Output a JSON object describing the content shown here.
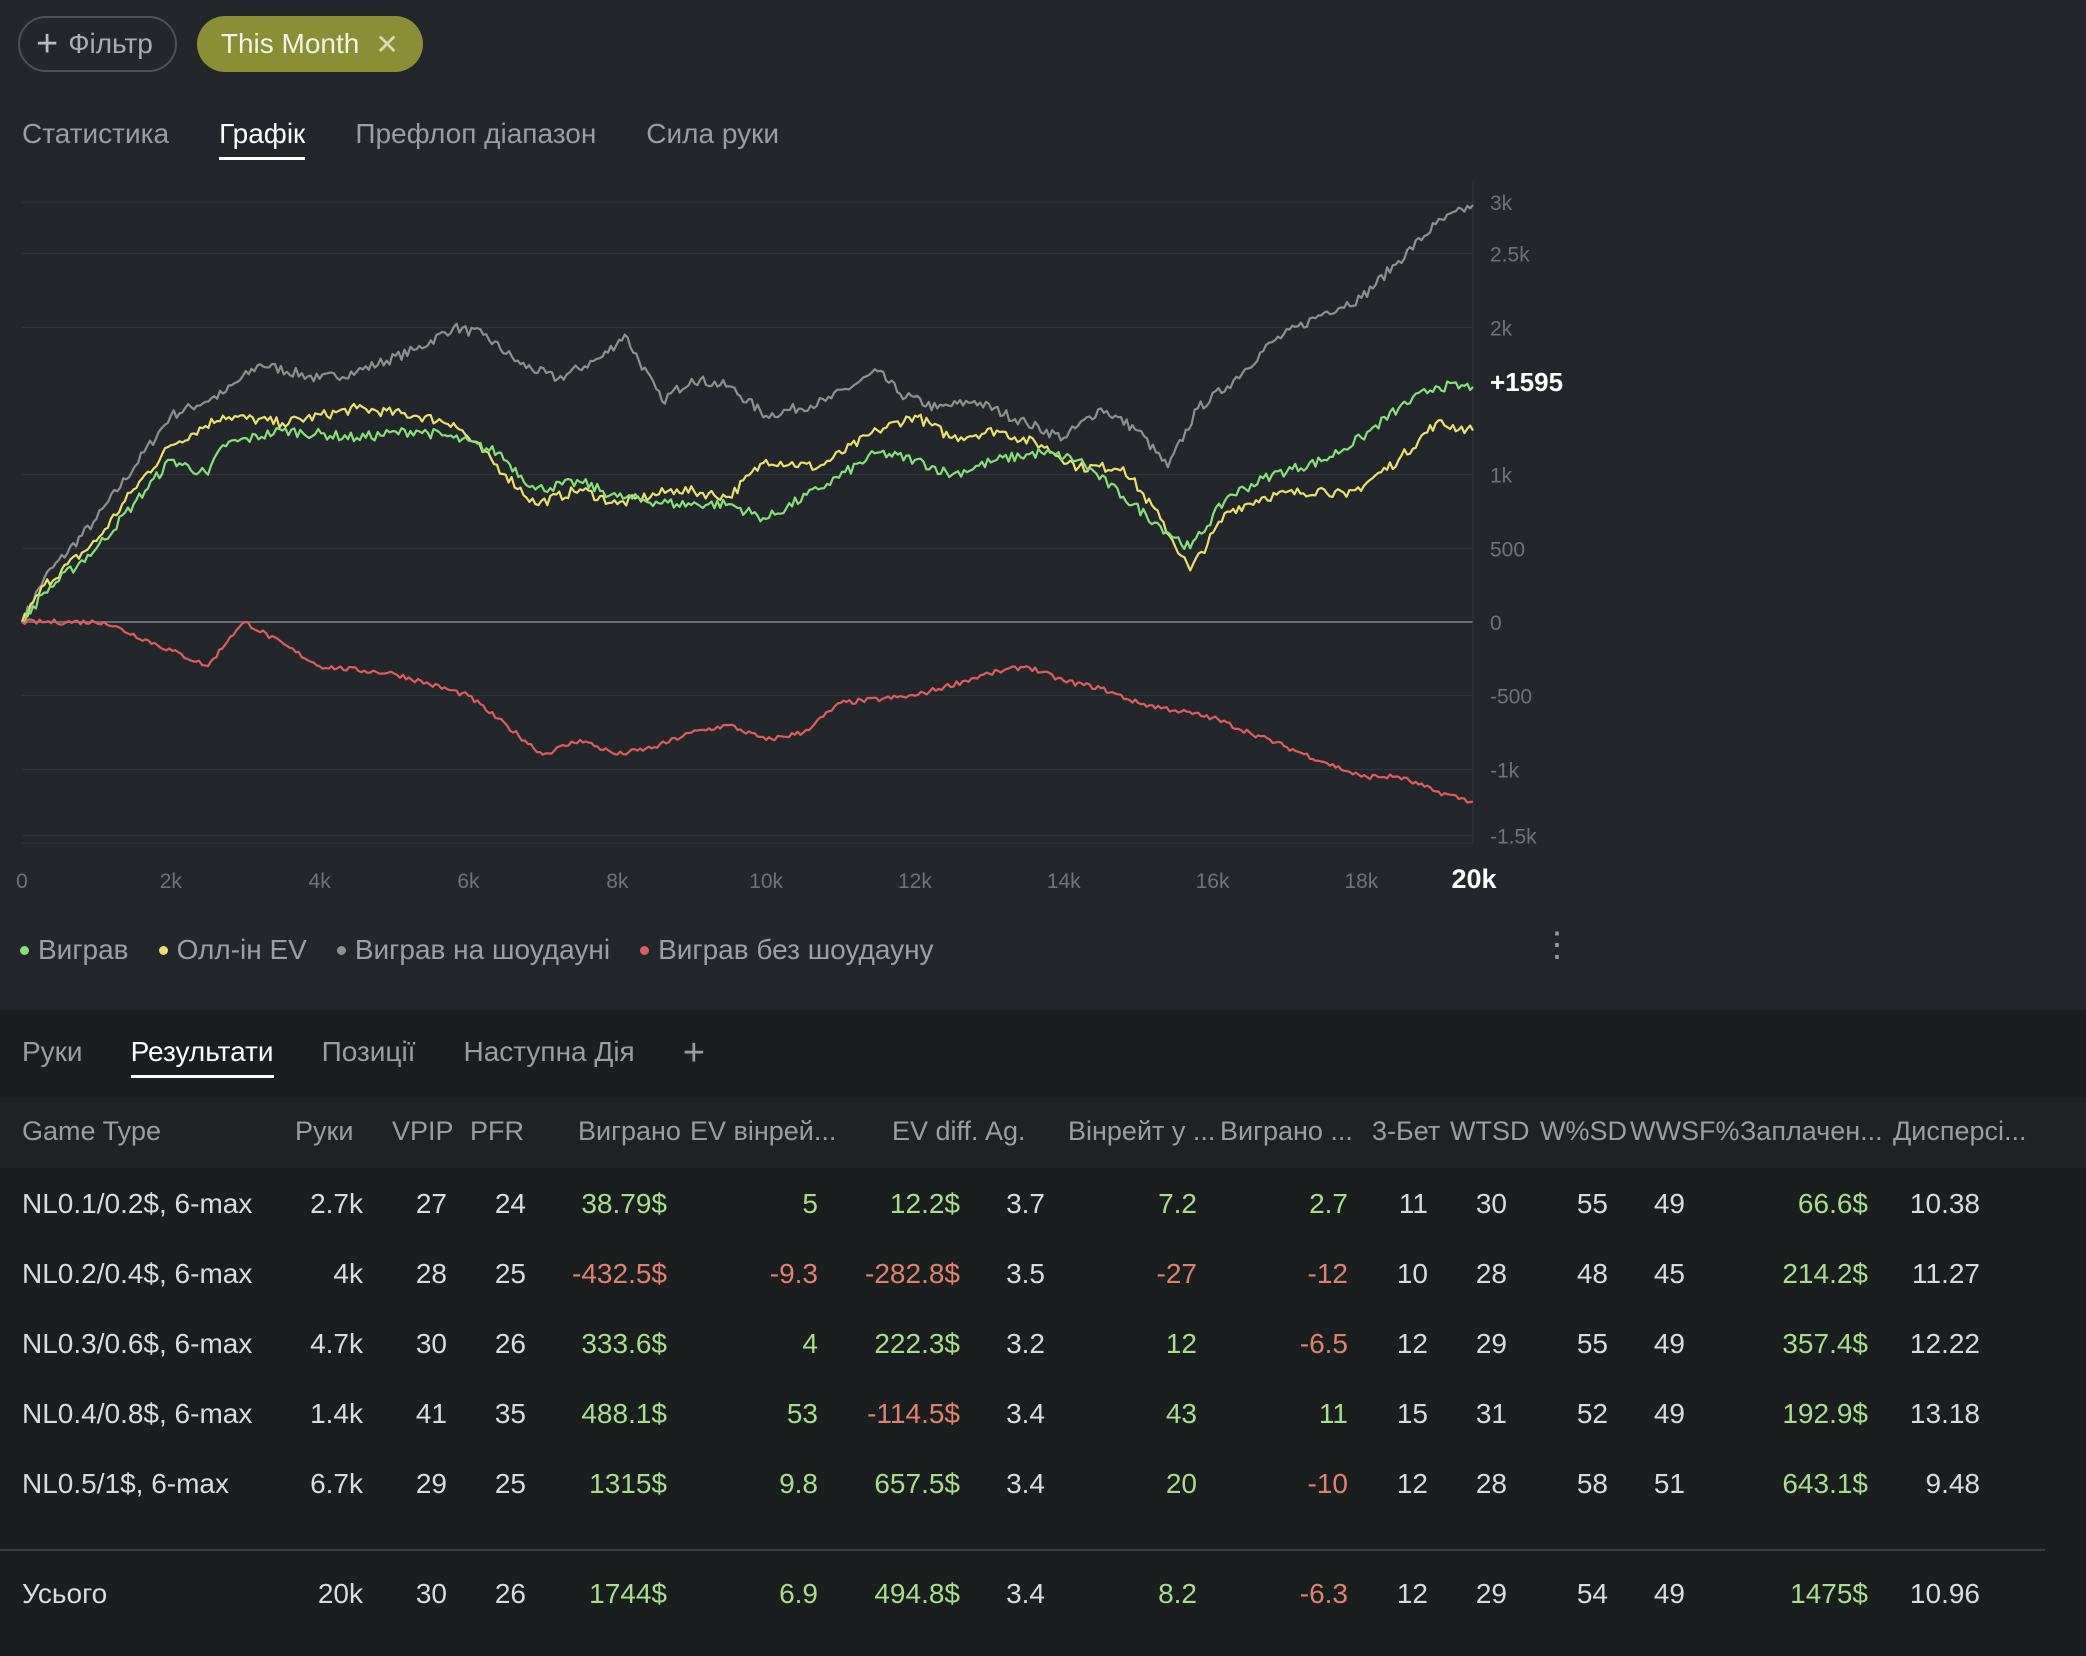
{
  "filters": {
    "add_label": "Фільтр",
    "active_label": "This Month"
  },
  "top_tabs": [
    "Статистика",
    "Графік",
    "Префлоп діапазон",
    "Сила руки"
  ],
  "top_tabs_selected": 1,
  "chart_data": {
    "type": "line",
    "x_ticks": [
      "0",
      "2k",
      "4k",
      "6k",
      "8k",
      "10k",
      "12k",
      "14k",
      "16k",
      "18k",
      "20k"
    ],
    "y_ticks": [
      "3k",
      "2.5k",
      "2k",
      "1k",
      "500",
      "0",
      "-500",
      "-1k",
      "-1.5k"
    ],
    "y_tick_values": [
      2850,
      2500,
      2000,
      1000,
      500,
      0,
      -500,
      -1000,
      -1450
    ],
    "xlim": [
      0,
      19500
    ],
    "ylim": [
      -1500,
      3000
    ],
    "end_label": "+1595",
    "series": [
      {
        "name": "Виграв на шоудауні",
        "color": "#8f8f8f",
        "x": [
          0,
          300,
          1000,
          2000,
          2700,
          3200,
          4000,
          4500,
          5300,
          5800,
          6200,
          6700,
          7200,
          7800,
          8100,
          8600,
          9000,
          9500,
          10000,
          10800,
          11500,
          11800,
          12300,
          12800,
          13500,
          14000,
          14500,
          15000,
          15400,
          15800,
          16200,
          16800,
          17500,
          18000,
          18500,
          19000,
          19500
        ],
        "y": [
          0,
          300,
          700,
          1400,
          1550,
          1750,
          1650,
          1700,
          1850,
          2000,
          1950,
          1750,
          1650,
          1800,
          1950,
          1500,
          1650,
          1600,
          1400,
          1500,
          1700,
          1550,
          1450,
          1500,
          1350,
          1250,
          1450,
          1300,
          1050,
          1450,
          1600,
          1900,
          2100,
          2200,
          2450,
          2700,
          2830
        ]
      },
      {
        "name": "Оллін EV",
        "color": "#e8e070",
        "x": [
          0,
          300,
          1000,
          1500,
          2000,
          2700,
          3500,
          4500,
          5300,
          5800,
          6500,
          6900,
          7500,
          8000,
          8800,
          9500,
          10000,
          10700,
          11500,
          12000,
          12500,
          13100,
          13700,
          14200,
          14800,
          15300,
          15700,
          16200,
          16700,
          17500,
          17800,
          18500,
          19000,
          19500
        ],
        "y": [
          0,
          250,
          550,
          900,
          1200,
          1400,
          1350,
          1450,
          1400,
          1350,
          1000,
          800,
          900,
          800,
          900,
          850,
          1100,
          1050,
          1300,
          1400,
          1250,
          1300,
          1200,
          1050,
          1050,
          700,
          350,
          750,
          850,
          900,
          850,
          1100,
          1350,
          1300
        ]
      },
      {
        "name": "Виграв",
        "color": "#86e07a",
        "x": [
          0,
          300,
          1000,
          1500,
          2000,
          2500,
          2700,
          3500,
          4500,
          5300,
          5800,
          6400,
          6900,
          7500,
          8000,
          8800,
          9500,
          10000,
          10700,
          11500,
          12000,
          12500,
          13100,
          13700,
          14200,
          14800,
          15300,
          15700,
          16200,
          16800,
          17500,
          18000,
          18500,
          19000,
          19500
        ],
        "y": [
          0,
          200,
          500,
          800,
          1100,
          1000,
          1200,
          1300,
          1250,
          1300,
          1250,
          1150,
          900,
          950,
          850,
          800,
          800,
          700,
          900,
          1150,
          1100,
          1000,
          1100,
          1150,
          1100,
          850,
          650,
          500,
          850,
          1000,
          1100,
          1250,
          1450,
          1600,
          1595
        ]
      },
      {
        "name": "Виграв без шоудауну",
        "color": "#e05c5c",
        "x": [
          0,
          1100,
          2500,
          2800,
          3000,
          4000,
          5000,
          6000,
          7000,
          7500,
          8000,
          8500,
          9000,
          9500,
          10000,
          10500,
          11000,
          12000,
          13000,
          13500,
          14000,
          14500,
          15000,
          15500,
          16000,
          16500,
          17000,
          17500,
          18000,
          18500,
          19000,
          19500
        ],
        "y": [
          0,
          0,
          -300,
          -100,
          0,
          -300,
          -350,
          -500,
          -900,
          -800,
          -900,
          -850,
          -750,
          -700,
          -800,
          -750,
          -550,
          -500,
          -350,
          -300,
          -400,
          -450,
          -550,
          -600,
          -650,
          -750,
          -850,
          -950,
          -1050,
          -1050,
          -1150,
          -1220
        ]
      }
    ]
  },
  "legend": [
    {
      "label": "Виграв",
      "color": "#86e07a"
    },
    {
      "label": "Олл-ін EV",
      "color": "#e8e070"
    },
    {
      "label": "Виграв на шоудауні",
      "color": "#8f8f8f"
    },
    {
      "label": "Виграв без шоудауну",
      "color": "#e05c5c"
    }
  ],
  "bottom_tabs": [
    "Руки",
    "Результати",
    "Позиції",
    "Наступна Дія"
  ],
  "bottom_tabs_selected": 1,
  "table": {
    "columns": [
      "Game Type",
      "Руки",
      "VPIP",
      "PFR",
      "Виграно",
      "EV вінрей...",
      "EV diff.",
      "Ag.",
      "Вінрейт у ...",
      "Виграно ...",
      "3-Бет",
      "WTSD",
      "W%SD",
      "WWSF%",
      "Заплачен...",
      "Дисперсі..."
    ],
    "rows": [
      [
        "NL0.1/0.2$, 6-max",
        "2.7k",
        "27",
        "24",
        "38.79$",
        "5",
        "12.2$",
        "3.7",
        "7.2",
        "2.7",
        "11",
        "30",
        "55",
        "49",
        "66.6$",
        "10.38"
      ],
      [
        "NL0.2/0.4$, 6-max",
        "4k",
        "28",
        "25",
        "-432.5$",
        "-9.3",
        "-282.8$",
        "3.5",
        "-27",
        "-12",
        "10",
        "28",
        "48",
        "45",
        "214.2$",
        "11.27"
      ],
      [
        "NL0.3/0.6$, 6-max",
        "4.7k",
        "30",
        "26",
        "333.6$",
        "4",
        "222.3$",
        "3.2",
        "12",
        "-6.5",
        "12",
        "29",
        "55",
        "49",
        "357.4$",
        "12.22"
      ],
      [
        "NL0.4/0.8$, 6-max",
        "1.4k",
        "41",
        "35",
        "488.1$",
        "53",
        "-114.5$",
        "3.4",
        "43",
        "11",
        "15",
        "31",
        "52",
        "49",
        "192.9$",
        "13.18"
      ],
      [
        "NL0.5/1$, 6-max",
        "6.7k",
        "29",
        "25",
        "1315$",
        "9.8",
        "657.5$",
        "3.4",
        "20",
        "-10",
        "12",
        "28",
        "58",
        "51",
        "643.1$",
        "9.48"
      ]
    ],
    "total": [
      "Усього",
      "20k",
      "30",
      "26",
      "1744$",
      "6.9",
      "494.8$",
      "3.4",
      "8.2",
      "-6.3",
      "12",
      "29",
      "54",
      "49",
      "1475$",
      "10.96"
    ]
  }
}
